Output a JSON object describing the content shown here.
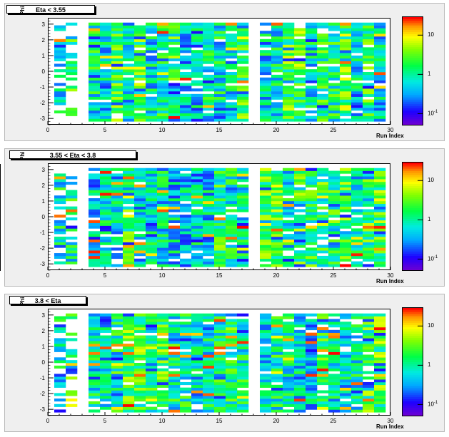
{
  "panels": [
    {
      "title": "Eta < 3.55"
    },
    {
      "title": "3.55 < Eta < 3.8"
    },
    {
      "title": "3.8 < Eta"
    }
  ],
  "axes": {
    "xlabel": "Run Index",
    "ylabel": "Phi"
  },
  "chart_data": [
    {
      "type": "heatmap",
      "title": "Eta < 3.55",
      "xlabel": "Run Index",
      "ylabel": "Phi",
      "xlim": [
        0,
        30
      ],
      "ylim": [
        -3.4,
        3.4
      ],
      "x_ticks": [
        "0",
        "5",
        "10",
        "15",
        "20",
        "25",
        "30"
      ],
      "y_ticks": [
        "-3",
        "-2",
        "-1",
        "0",
        "1",
        "2",
        "3"
      ],
      "z_scale": "log",
      "z_range": [
        0.05,
        30
      ],
      "colorbar_ticks": [
        "10",
        "1",
        "10^-1"
      ],
      "x_bins": 29,
      "y_bins": 36,
      "seed": 11,
      "hot_bias": 0.1,
      "empty_columns": [
        2,
        17
      ]
    },
    {
      "type": "heatmap",
      "title": "3.55 < Eta < 3.8",
      "xlabel": "Run Index",
      "ylabel": "Phi",
      "xlim": [
        0,
        30
      ],
      "ylim": [
        -3.4,
        3.4
      ],
      "x_ticks": [
        "0",
        "5",
        "10",
        "15",
        "20",
        "25",
        "30"
      ],
      "y_ticks": [
        "-3",
        "-2",
        "-1",
        "0",
        "1",
        "2",
        "3"
      ],
      "z_scale": "log",
      "z_range": [
        0.05,
        30
      ],
      "colorbar_ticks": [
        "10",
        "1",
        "10^-1"
      ],
      "x_bins": 29,
      "y_bins": 36,
      "seed": 23,
      "hot_bias": 0.2,
      "empty_columns": [
        2,
        17
      ]
    },
    {
      "type": "heatmap",
      "title": "3.8 < Eta",
      "xlabel": "Run Index",
      "ylabel": "Phi",
      "xlim": [
        0,
        30
      ],
      "ylim": [
        -3.4,
        3.4
      ],
      "x_ticks": [
        "0",
        "5",
        "10",
        "15",
        "20",
        "25",
        "30"
      ],
      "y_ticks": [
        "-3",
        "-2",
        "-1",
        "0",
        "1",
        "2",
        "3"
      ],
      "z_scale": "log",
      "z_range": [
        0.05,
        30
      ],
      "colorbar_ticks": [
        "10",
        "1",
        "10^-1"
      ],
      "x_bins": 29,
      "y_bins": 36,
      "seed": 37,
      "hot_bias": 0.35,
      "empty_columns": [
        2,
        17
      ]
    }
  ]
}
